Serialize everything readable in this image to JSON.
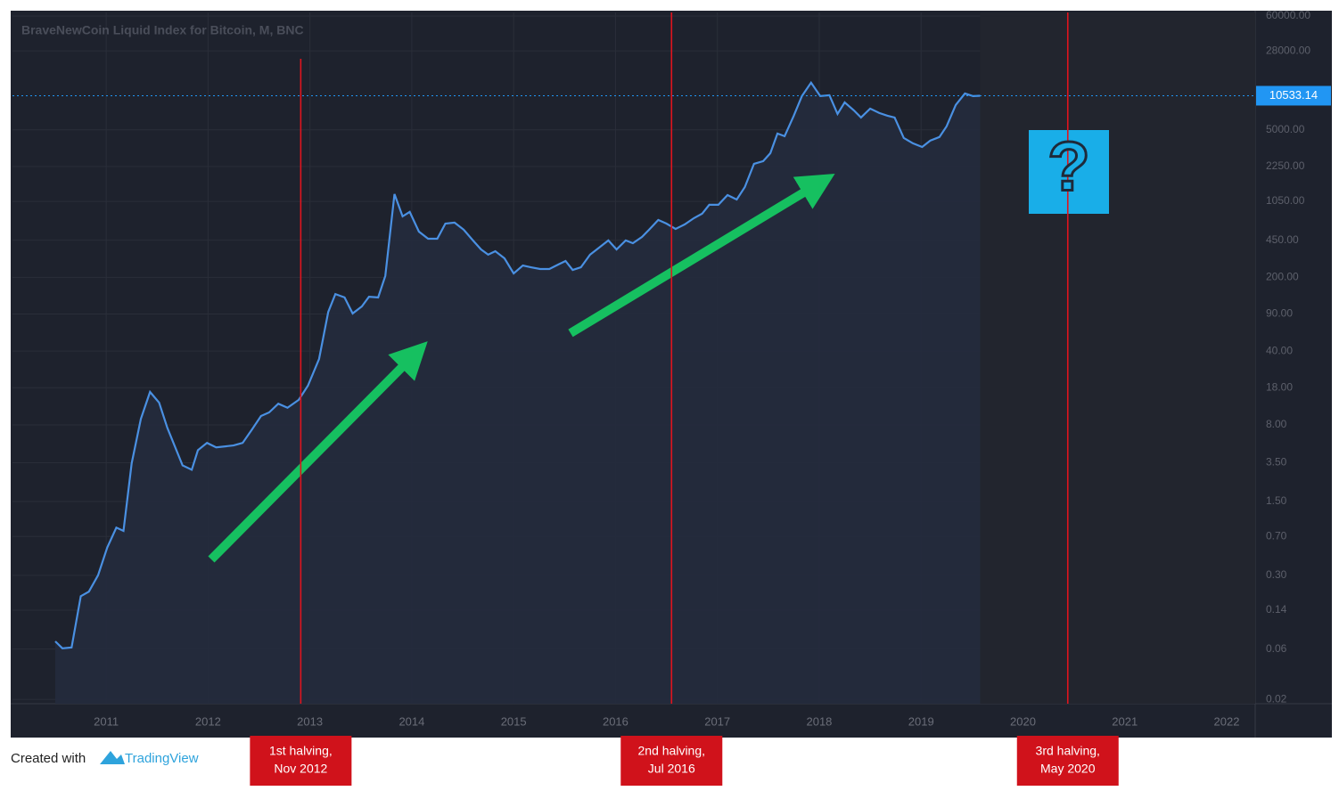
{
  "chart_data": {
    "type": "line",
    "title": "BraveNewCoin Liquid Index for Bitcoin, M, BNC",
    "x": [
      2010.5,
      2010.57,
      2010.66,
      2010.75,
      2010.83,
      2010.92,
      2011.01,
      2011.1,
      2011.17,
      2011.25,
      2011.34,
      2011.43,
      2011.52,
      2011.6,
      2011.75,
      2011.84,
      2011.9,
      2011.99,
      2012.08,
      2012.25,
      2012.34,
      2012.43,
      2012.52,
      2012.6,
      2012.69,
      2012.78,
      2012.89,
      2012.98,
      2013.09,
      2013.18,
      2013.25,
      2013.34,
      2013.42,
      2013.51,
      2013.58,
      2013.67,
      2013.74,
      2013.83,
      2013.91,
      2013.98,
      2014.07,
      2014.16,
      2014.25,
      2014.33,
      2014.42,
      2014.51,
      2014.6,
      2014.68,
      2014.75,
      2014.82,
      2014.91,
      2015.0,
      2015.09,
      2015.17,
      2015.26,
      2015.35,
      2015.44,
      2015.51,
      2015.58,
      2015.66,
      2015.75,
      2015.84,
      2015.93,
      2016.01,
      2016.1,
      2016.17,
      2016.26,
      2016.33,
      2016.42,
      2016.5,
      2016.59,
      2016.68,
      2016.77,
      2016.85,
      2016.92,
      2017.01,
      2017.1,
      2017.19,
      2017.27,
      2017.36,
      2017.45,
      2017.52,
      2017.59,
      2017.66,
      2017.75,
      2017.83,
      2017.92,
      2018.01,
      2018.1,
      2018.18,
      2018.25,
      2018.34,
      2018.41,
      2018.5,
      2018.59,
      2018.67,
      2018.74,
      2018.83,
      2018.92,
      2019.01,
      2019.09,
      2019.18,
      2019.25,
      2019.34,
      2019.43,
      2019.51,
      2019.58
    ],
    "values": [
      0.071,
      0.061,
      0.062,
      0.19,
      0.21,
      0.3,
      0.55,
      0.85,
      0.79,
      3.46,
      9.1,
      16.4,
      13.0,
      7.5,
      3.3,
      3.0,
      4.6,
      5.4,
      4.9,
      5.1,
      5.4,
      7.2,
      9.7,
      10.5,
      12.7,
      11.6,
      13.8,
      18.8,
      33.7,
      94,
      139,
      129,
      91,
      106,
      131,
      129,
      206,
      1230,
      757,
      834,
      543,
      465,
      465,
      647,
      660,
      565,
      448,
      368,
      328,
      354,
      303,
      218,
      259,
      249,
      240,
      240,
      265,
      286,
      235,
      249,
      328,
      383,
      448,
      368,
      448,
      422,
      483,
      565,
      700,
      647,
      575,
      635,
      728,
      802,
      975,
      975,
      1205,
      1094,
      1436,
      2382,
      2524,
      3006,
      4612,
      4356,
      6808,
      10446,
      13992,
      10446,
      10650,
      7080,
      9120,
      7656,
      6546,
      7962,
      7220,
      6808,
      6546,
      4188,
      3724,
      3444,
      3954,
      4276,
      5400,
      8610,
      11068,
      10446,
      10533.14
    ],
    "color": "#4a90e2",
    "area_color": "#232b3d",
    "log_scale": true,
    "grid": true,
    "last_price_line": true,
    "xlim": [
      2010.08,
      2022.28
    ],
    "xticks": [
      2011,
      2012,
      2013,
      2014,
      2015,
      2016,
      2017,
      2018,
      2019,
      2020,
      2021,
      2022
    ],
    "ylim": [
      0.0182,
      64800
    ],
    "yticks": [
      {
        "value": 0.02,
        "label": "0.02"
      },
      0.06,
      0.14,
      {
        "value": 0.3,
        "label": "0.30"
      },
      {
        "value": 0.7,
        "label": "0.70"
      },
      {
        "value": 1.5,
        "label": "1.50"
      },
      {
        "value": 3.5,
        "label": "3.50"
      },
      {
        "value": 8,
        "label": "8.00"
      },
      {
        "value": 18,
        "label": "18.00"
      },
      {
        "value": 40,
        "label": "40.00"
      },
      {
        "value": 90,
        "label": "90.00"
      },
      {
        "value": 200,
        "label": "200.00"
      },
      {
        "value": 450,
        "label": "450.00"
      },
      {
        "value": 1050,
        "label": "1050.00"
      },
      {
        "value": 2250,
        "label": "2250.00"
      },
      {
        "value": 5000,
        "label": "5000.00"
      },
      {
        "value": 28000,
        "label": "28000.00"
      },
      {
        "value": 60000,
        "label": "60000.00"
      }
    ],
    "annotations": [
      {
        "x": 2012.91,
        "label": [
          "1st halving,",
          "Nov 2012"
        ]
      },
      {
        "x": 2016.55,
        "label": [
          "2nd halving,",
          "Jul 2016"
        ]
      },
      {
        "x": 2020.44,
        "label": [
          "3rd halving,",
          "May 2020"
        ]
      }
    ],
    "callout": "?"
  },
  "footer": {
    "text": "Created with",
    "brand": "TradingView"
  }
}
